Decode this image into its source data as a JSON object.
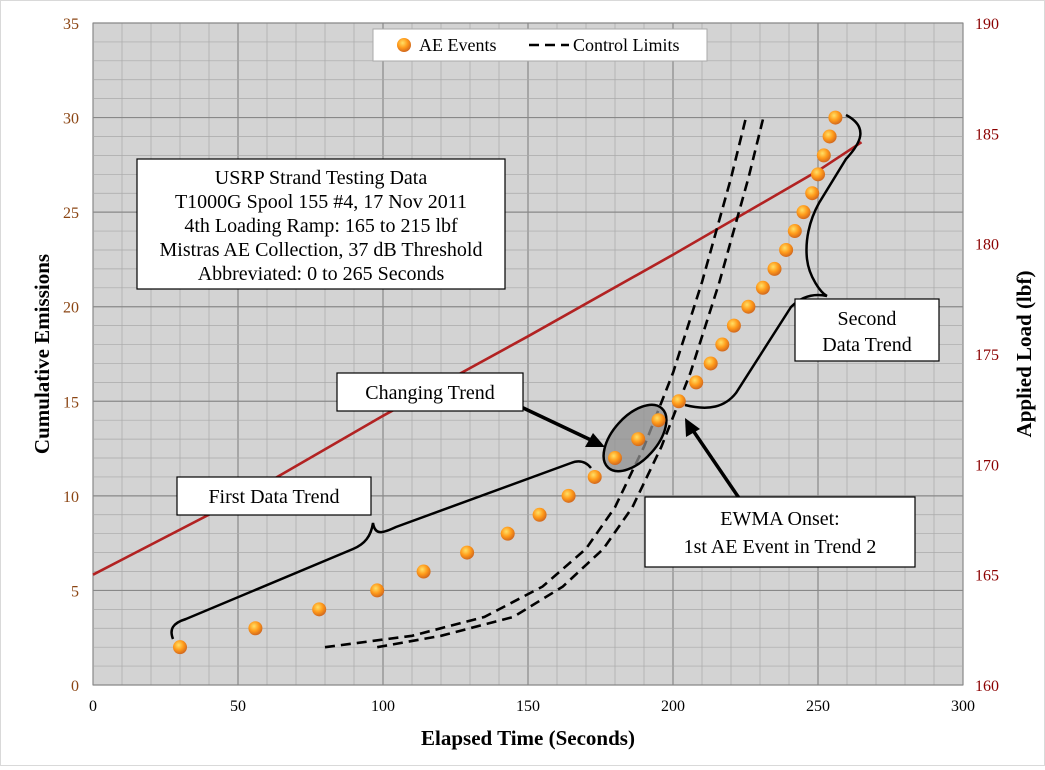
{
  "chart_data": {
    "type": "scatter",
    "title": "",
    "xlabel": "Elapsed Time (Seconds)",
    "ylabel_left": "Cumulative Emissions",
    "ylabel_right": "Applied Load (lbf)",
    "xlim": [
      0,
      300
    ],
    "ylim_left": [
      0,
      35
    ],
    "ylim_right": [
      160,
      190
    ],
    "x_ticks": [
      0,
      50,
      100,
      150,
      200,
      250,
      300
    ],
    "y_left_ticks": [
      0,
      5,
      10,
      15,
      20,
      25,
      30,
      35
    ],
    "y_right_ticks": [
      160,
      165,
      170,
      175,
      180,
      185,
      190
    ],
    "grid": true,
    "legend_position": "top-center",
    "legend": {
      "ae_events": "AE Events",
      "control_limits": "Control Limits"
    },
    "ae_events": [
      {
        "x": 30,
        "y": 2
      },
      {
        "x": 56,
        "y": 3
      },
      {
        "x": 78,
        "y": 4
      },
      {
        "x": 98,
        "y": 5
      },
      {
        "x": 114,
        "y": 6
      },
      {
        "x": 129,
        "y": 7
      },
      {
        "x": 143,
        "y": 8
      },
      {
        "x": 154,
        "y": 9
      },
      {
        "x": 164,
        "y": 10
      },
      {
        "x": 173,
        "y": 11
      },
      {
        "x": 180,
        "y": 12
      },
      {
        "x": 188,
        "y": 13
      },
      {
        "x": 195,
        "y": 14
      },
      {
        "x": 202,
        "y": 15
      },
      {
        "x": 208,
        "y": 16
      },
      {
        "x": 213,
        "y": 17
      },
      {
        "x": 217,
        "y": 18
      },
      {
        "x": 221,
        "y": 19
      },
      {
        "x": 226,
        "y": 20
      },
      {
        "x": 231,
        "y": 21
      },
      {
        "x": 235,
        "y": 22
      },
      {
        "x": 239,
        "y": 23
      },
      {
        "x": 242,
        "y": 24
      },
      {
        "x": 245,
        "y": 25
      },
      {
        "x": 248,
        "y": 26
      },
      {
        "x": 250,
        "y": 27
      },
      {
        "x": 252,
        "y": 28
      },
      {
        "x": 254,
        "y": 29
      },
      {
        "x": 256,
        "y": 30
      }
    ],
    "applied_load": [
      {
        "x": 0,
        "y": 165
      },
      {
        "x": 50,
        "y": 168.4
      },
      {
        "x": 100,
        "y": 172.2
      },
      {
        "x": 150,
        "y": 175.8
      },
      {
        "x": 200,
        "y": 179.5
      },
      {
        "x": 250,
        "y": 183.3
      },
      {
        "x": 265,
        "y": 184.6
      }
    ],
    "control_limit_upper": [
      {
        "x": 80,
        "y": 2.0
      },
      {
        "x": 110,
        "y": 2.6
      },
      {
        "x": 135,
        "y": 3.6
      },
      {
        "x": 155,
        "y": 5.2
      },
      {
        "x": 170,
        "y": 7.2
      },
      {
        "x": 180,
        "y": 9.4
      },
      {
        "x": 190,
        "y": 12.6
      },
      {
        "x": 200,
        "y": 16.5
      },
      {
        "x": 210,
        "y": 21.3
      },
      {
        "x": 220,
        "y": 26.8
      },
      {
        "x": 225,
        "y": 29.9
      }
    ],
    "control_limit_lower": [
      {
        "x": 98,
        "y": 2.0
      },
      {
        "x": 120,
        "y": 2.6
      },
      {
        "x": 145,
        "y": 3.6
      },
      {
        "x": 162,
        "y": 5.2
      },
      {
        "x": 176,
        "y": 7.2
      },
      {
        "x": 186,
        "y": 9.4
      },
      {
        "x": 196,
        "y": 12.6
      },
      {
        "x": 206,
        "y": 16.5
      },
      {
        "x": 216,
        "y": 21.3
      },
      {
        "x": 226,
        "y": 26.8
      },
      {
        "x": 231,
        "y": 29.9
      }
    ],
    "annotations": {
      "info_box": [
        "USRP Strand Testing Data",
        "T1000G Spool 155 #4, 17 Nov 2011",
        "4th Loading Ramp: 165 to 215 lbf",
        "Mistras AE Collection, 37 dB Threshold",
        "Abbreviated: 0 to 265 Seconds"
      ],
      "first_trend": "First Data Trend",
      "changing_trend": "Changing Trend",
      "second_trend": [
        "Second",
        "Data Trend"
      ],
      "ewma_onset": [
        "EWMA Onset:",
        "1st AE Event in Trend 2"
      ]
    },
    "colors": {
      "plot_bg": "#d3d3d3",
      "load_line": "#b22222",
      "marker_fill": "#ff8c00",
      "marker_center": "#ffe066",
      "left_ticks": "#8b4513",
      "right_ticks": "#8b0000"
    }
  }
}
